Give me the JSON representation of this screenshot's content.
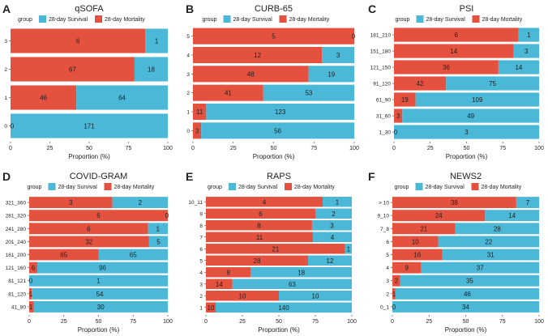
{
  "colors": {
    "survival": "#4ab8d6",
    "mortality": "#e5513f",
    "text": "#222222",
    "axis": "#333333"
  },
  "chart_data": [
    {
      "type": "bar",
      "orientation": "horizontal",
      "stacked": "percent",
      "panel": "A",
      "title": "qSOFA",
      "legend_title": "group",
      "legend": [
        "28-day Survival",
        "28-day Mortality"
      ],
      "xlabel": "Proportion (%)",
      "xlim": [
        0,
        100
      ],
      "xticks": [
        "0",
        "25",
        "50",
        "75",
        "100"
      ],
      "categories": [
        "0",
        "1",
        "2",
        "3"
      ],
      "series": [
        {
          "name": "28-day Mortality",
          "values": [
            0,
            46,
            67,
            6
          ]
        },
        {
          "name": "28-day Survival",
          "values": [
            171,
            64,
            18,
            1
          ]
        }
      ]
    },
    {
      "type": "bar",
      "orientation": "horizontal",
      "stacked": "percent",
      "panel": "B",
      "title": "CURB-65",
      "legend_title": "group",
      "legend": [
        "28-day Survival",
        "28-day Mortality"
      ],
      "xlabel": "Proportion (%)",
      "xlim": [
        0,
        100
      ],
      "xticks": [
        "0",
        "25",
        "50",
        "75",
        "100"
      ],
      "categories": [
        "0",
        "1",
        "2",
        "3",
        "4",
        "5"
      ],
      "series": [
        {
          "name": "28-day Mortality",
          "values": [
            3,
            11,
            41,
            48,
            12,
            5
          ]
        },
        {
          "name": "28-day Survival",
          "values": [
            56,
            123,
            53,
            19,
            3,
            0
          ]
        }
      ]
    },
    {
      "type": "bar",
      "orientation": "horizontal",
      "stacked": "percent",
      "panel": "C",
      "title": "PSI",
      "legend_title": "group",
      "legend": [
        "28-day Survival",
        "28-day Mortality"
      ],
      "xlabel": "Proportion (%)",
      "xlim": [
        0,
        100
      ],
      "xticks": [
        "0",
        "25",
        "50",
        "75",
        "100"
      ],
      "categories": [
        "1_30",
        "31_60",
        "61_90",
        "91_120",
        "121_150",
        "151_180",
        "181_210"
      ],
      "series": [
        {
          "name": "28-day Mortality",
          "values": [
            0,
            3,
            19,
            42,
            36,
            14,
            6
          ]
        },
        {
          "name": "28-day Survival",
          "values": [
            3,
            49,
            109,
            75,
            14,
            3,
            1
          ]
        }
      ]
    },
    {
      "type": "bar",
      "orientation": "horizontal",
      "stacked": "percent",
      "panel": "D",
      "title": "COVID-GRAM",
      "legend_title": "group",
      "legend": [
        "28-day Survival",
        "28-day Mortality"
      ],
      "xlabel": "Proportion (%)",
      "xlim": [
        0,
        100
      ],
      "xticks": [
        "0",
        "25",
        "50",
        "75",
        "100"
      ],
      "categories": [
        "41_80",
        "81_120",
        "81_121",
        "121_160",
        "161_200",
        "201_240",
        "241_280",
        "281_320",
        "321_360"
      ],
      "series": [
        {
          "name": "28-day Mortality",
          "values": [
            1,
            1,
            0,
            6,
            65,
            32,
            6,
            6,
            3
          ]
        },
        {
          "name": "28-day Survival",
          "values": [
            30,
            54,
            1,
            96,
            65,
            5,
            1,
            0,
            2
          ]
        }
      ]
    },
    {
      "type": "bar",
      "orientation": "horizontal",
      "stacked": "percent",
      "panel": "E",
      "title": "RAPS",
      "legend_title": "group",
      "legend": [
        "28-day Survival",
        "28-day Mortality"
      ],
      "xlabel": "Proportion (%)",
      "xlim": [
        0,
        100
      ],
      "xticks": [
        "0",
        "25",
        "50",
        "75",
        "100"
      ],
      "categories": [
        "1",
        "2",
        "3",
        "4",
        "5",
        "6",
        "7",
        "8",
        "9",
        "10_11"
      ],
      "series": [
        {
          "name": "28-day Mortality",
          "values": [
            10,
            10,
            14,
            8,
            28,
            21,
            11,
            8,
            6,
            4
          ]
        },
        {
          "name": "28-day Survival",
          "values": [
            140,
            10,
            63,
            18,
            12,
            1,
            4,
            3,
            2,
            1
          ]
        }
      ]
    },
    {
      "type": "bar",
      "orientation": "horizontal",
      "stacked": "percent",
      "panel": "F",
      "title": "NEWS2",
      "legend_title": "group",
      "legend": [
        "28-day Survival",
        "28-day Mortality"
      ],
      "xlabel": "Proportion (%)",
      "xlim": [
        0,
        100
      ],
      "xticks": [
        "0",
        "25",
        "50",
        "75",
        "100"
      ],
      "categories": [
        "0_1",
        "2",
        "3",
        "4",
        "5",
        "6",
        "7_8",
        "9_10",
        "> 10"
      ],
      "series": [
        {
          "name": "28-day Mortality",
          "values": [
            0,
            1,
            2,
            9,
            16,
            10,
            21,
            24,
            38
          ]
        },
        {
          "name": "28-day Survival",
          "values": [
            34,
            46,
            35,
            37,
            31,
            22,
            28,
            14,
            7
          ]
        }
      ]
    }
  ]
}
